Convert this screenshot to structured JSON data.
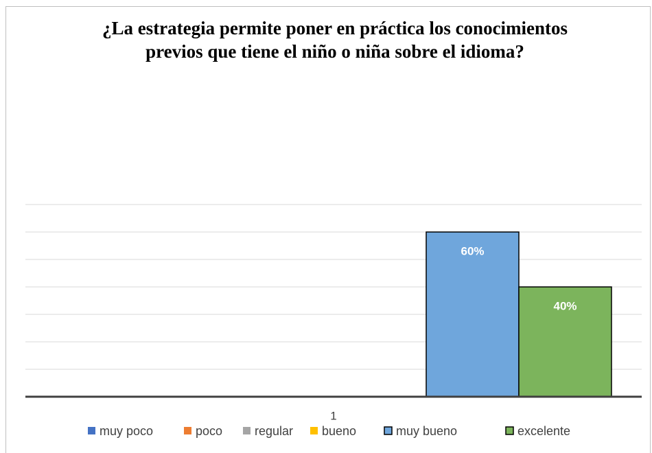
{
  "chart_data": {
    "type": "bar",
    "title": "¿La estrategia permite poner en práctica los conocimientos previos que tiene el niño o niña sobre el idioma?",
    "categories": [
      "1"
    ],
    "series": [
      {
        "name": "muy poco",
        "color": "#4472c4",
        "values": [
          0
        ]
      },
      {
        "name": "poco",
        "color": "#ed7d31",
        "values": [
          0
        ]
      },
      {
        "name": "regular",
        "color": "#a5a5a5",
        "values": [
          0
        ]
      },
      {
        "name": "bueno",
        "color": "#ffc000",
        "values": [
          0
        ]
      },
      {
        "name": "muy bueno",
        "color": "#6fa6dc",
        "values": [
          60
        ],
        "value_labels": [
          "60%"
        ]
      },
      {
        "name": "excelente",
        "color": "#7cb45c",
        "values": [
          40
        ],
        "value_labels": [
          "40%"
        ]
      }
    ],
    "ylim": [
      0,
      70
    ],
    "yticks": [
      0,
      10,
      20,
      30,
      40,
      50,
      60,
      70
    ],
    "grid": true,
    "legend": "bottom"
  }
}
